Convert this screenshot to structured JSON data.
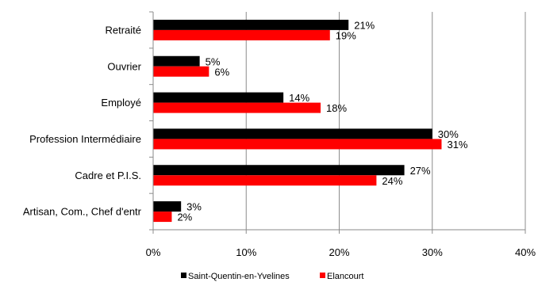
{
  "chart_data": {
    "type": "bar",
    "orientation": "horizontal",
    "categories": [
      "Retraité",
      "Ouvrier",
      "Employé",
      "Profession Intermédiaire",
      "Cadre et P.I.S.",
      "Artisan, Com., Chef d'entr"
    ],
    "series": [
      {
        "name": "Saint-Quentin-en-Yvelines",
        "color": "#000000",
        "values": [
          21,
          5,
          14,
          30,
          27,
          3
        ],
        "labels": [
          "21%",
          "5%",
          "14%",
          "30%",
          "27%",
          "3%"
        ]
      },
      {
        "name": "Elancourt",
        "color": "#ff0000",
        "values": [
          19,
          6,
          18,
          31,
          24,
          2
        ],
        "labels": [
          "19%",
          "6%",
          "18%",
          "31%",
          "24%",
          "2%"
        ]
      }
    ],
    "xlim": [
      0,
      40
    ],
    "xticks": [
      0,
      10,
      20,
      30,
      40
    ],
    "xtick_labels": [
      "0%",
      "10%",
      "20%",
      "30%",
      "40%"
    ],
    "grid": true,
    "legend_position": "bottom",
    "title": "",
    "xlabel": "",
    "ylabel": ""
  }
}
